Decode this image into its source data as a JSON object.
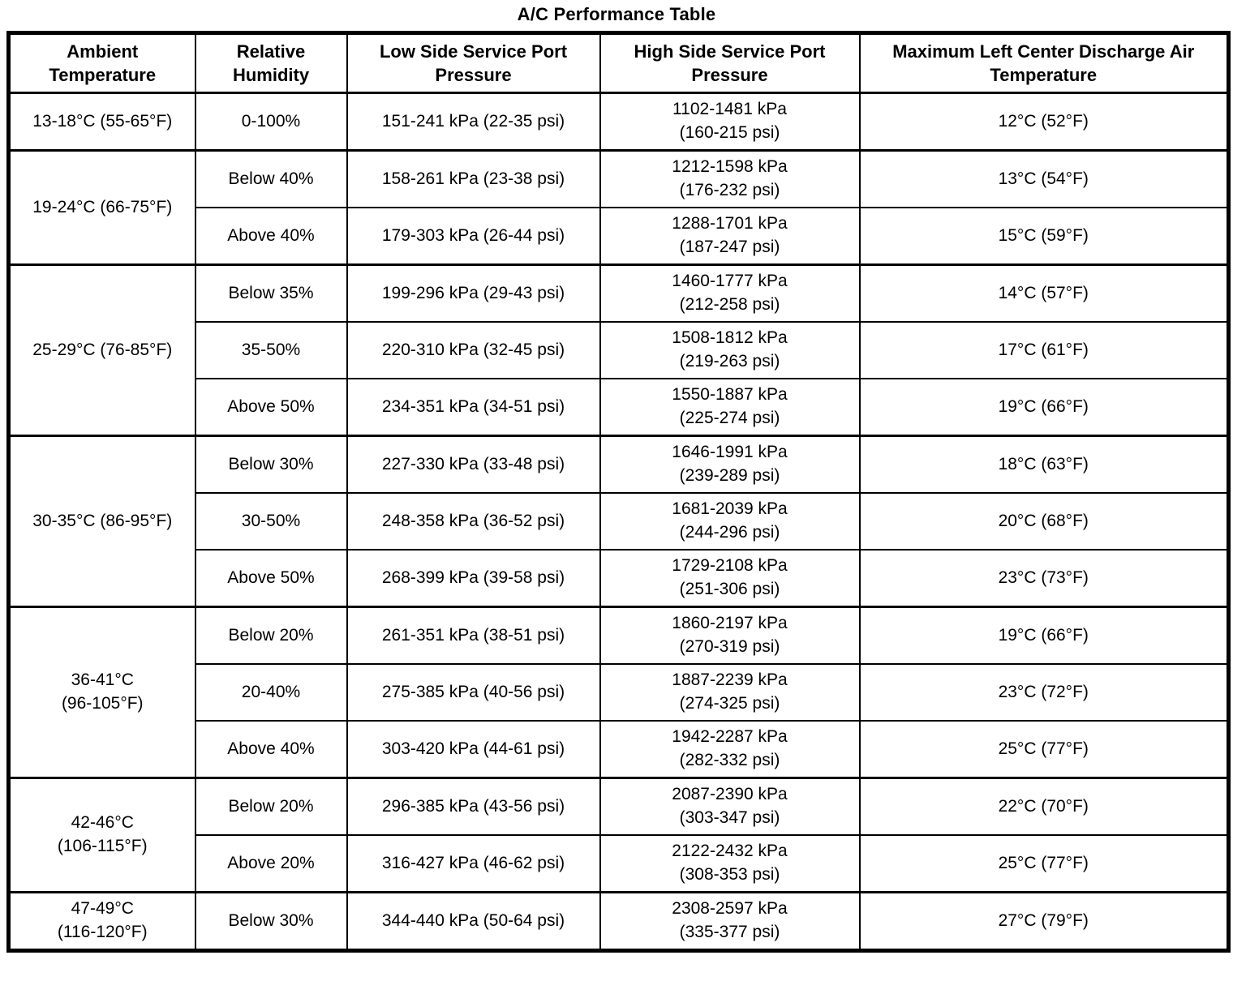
{
  "title": "A/C Performance Table",
  "table": {
    "columns": [
      "Ambient\nTemperature",
      "Relative\nHumidity",
      "Low Side Service Port\nPressure",
      "High Side Service Port\nPressure",
      "Maximum Left Center Discharge Air\nTemperature"
    ],
    "groups": [
      {
        "ambient": "13-18°C (55-65°F)",
        "rows": [
          {
            "humidity": "0-100%",
            "low": "151-241 kPa (22-35 psi)",
            "high": "1102-1481 kPa\n(160-215 psi)",
            "max": "12°C (52°F)"
          }
        ]
      },
      {
        "ambient": "19-24°C (66-75°F)",
        "rows": [
          {
            "humidity": "Below 40%",
            "low": "158-261 kPa (23-38 psi)",
            "high": "1212-1598 kPa\n(176-232 psi)",
            "max": "13°C (54°F)"
          },
          {
            "humidity": "Above 40%",
            "low": "179-303 kPa (26-44 psi)",
            "high": "1288-1701 kPa\n(187-247 psi)",
            "max": "15°C (59°F)"
          }
        ]
      },
      {
        "ambient": "25-29°C (76-85°F)",
        "rows": [
          {
            "humidity": "Below 35%",
            "low": "199-296 kPa (29-43 psi)",
            "high": "1460-1777 kPa\n(212-258 psi)",
            "max": "14°C (57°F)"
          },
          {
            "humidity": "35-50%",
            "low": "220-310 kPa (32-45 psi)",
            "high": "1508-1812 kPa\n(219-263 psi)",
            "max": "17°C (61°F)"
          },
          {
            "humidity": "Above 50%",
            "low": "234-351 kPa (34-51 psi)",
            "high": "1550-1887 kPa\n(225-274 psi)",
            "max": "19°C (66°F)"
          }
        ]
      },
      {
        "ambient": "30-35°C (86-95°F)",
        "rows": [
          {
            "humidity": "Below 30%",
            "low": "227-330 kPa (33-48 psi)",
            "high": "1646-1991 kPa\n(239-289 psi)",
            "max": "18°C (63°F)"
          },
          {
            "humidity": "30-50%",
            "low": "248-358 kPa (36-52 psi)",
            "high": "1681-2039 kPa\n(244-296 psi)",
            "max": "20°C (68°F)"
          },
          {
            "humidity": "Above 50%",
            "low": "268-399 kPa (39-58 psi)",
            "high": "1729-2108 kPa\n(251-306 psi)",
            "max": "23°C (73°F)"
          }
        ]
      },
      {
        "ambient": "36-41°C\n(96-105°F)",
        "rows": [
          {
            "humidity": "Below 20%",
            "low": "261-351 kPa (38-51 psi)",
            "high": "1860-2197 kPa\n(270-319 psi)",
            "max": "19°C (66°F)"
          },
          {
            "humidity": "20-40%",
            "low": "275-385 kPa (40-56 psi)",
            "high": "1887-2239 kPa\n(274-325 psi)",
            "max": "23°C (72°F)"
          },
          {
            "humidity": "Above 40%",
            "low": "303-420 kPa (44-61 psi)",
            "high": "1942-2287 kPa\n(282-332 psi)",
            "max": "25°C (77°F)"
          }
        ]
      },
      {
        "ambient": "42-46°C\n(106-115°F)",
        "rows": [
          {
            "humidity": "Below 20%",
            "low": "296-385 kPa (43-56 psi)",
            "high": "2087-2390 kPa\n(303-347 psi)",
            "max": "22°C (70°F)"
          },
          {
            "humidity": "Above 20%",
            "low": "316-427 kPa (46-62 psi)",
            "high": "2122-2432 kPa\n(308-353 psi)",
            "max": "25°C (77°F)"
          }
        ]
      },
      {
        "ambient": "47-49°C\n(116-120°F)",
        "rows": [
          {
            "humidity": "Below 30%",
            "low": "344-440 kPa (50-64 psi)",
            "high": "2308-2597 kPa\n(335-377 psi)",
            "max": "27°C (79°F)"
          }
        ]
      }
    ]
  }
}
